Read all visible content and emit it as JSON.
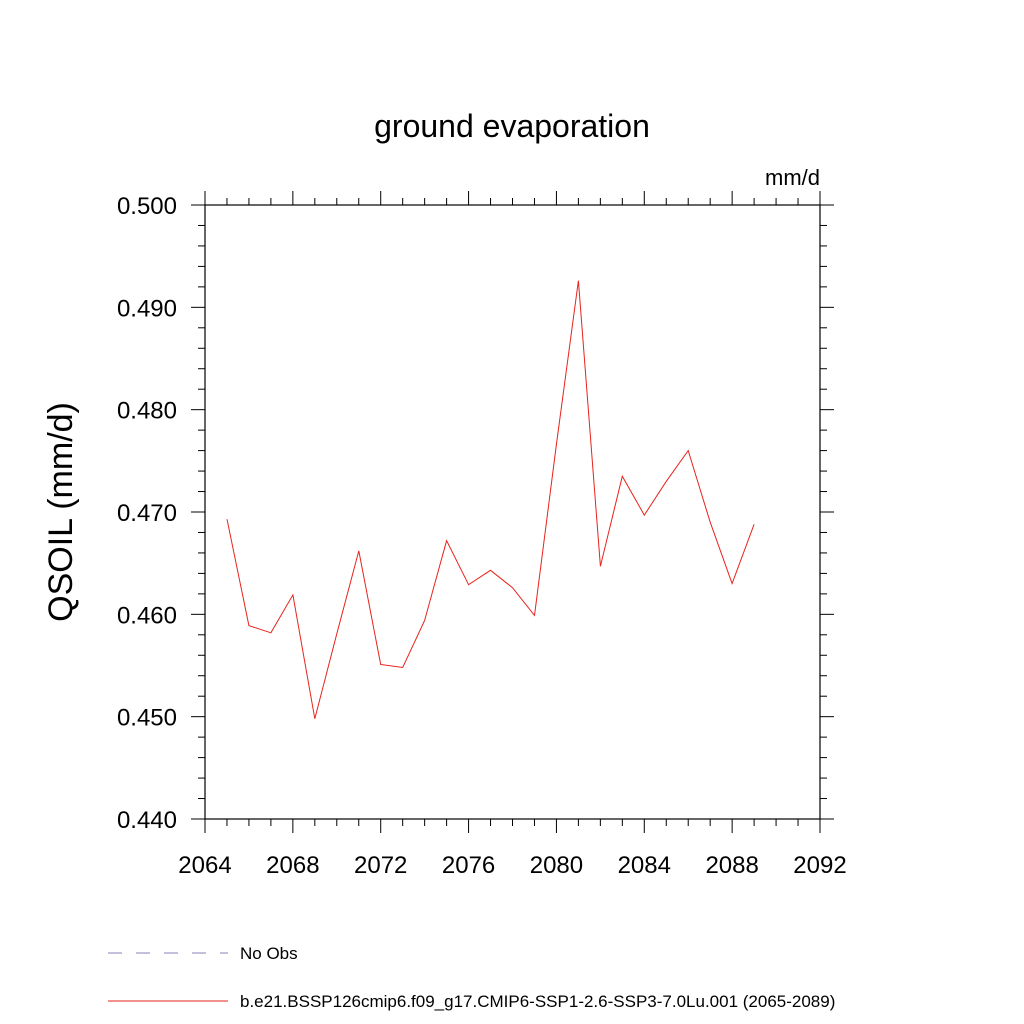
{
  "chart_data": {
    "type": "line",
    "title": "ground evaporation",
    "units": "mm/d",
    "ylabel": "QSOIL  (mm/d)",
    "xlabel": "",
    "xlim": [
      2064,
      2092
    ],
    "ylim": [
      0.44,
      0.5
    ],
    "xticks": [
      "2064",
      "2068",
      "2072",
      "2076",
      "2080",
      "2084",
      "2088",
      "2092"
    ],
    "yticks": [
      "0.440",
      "0.450",
      "0.460",
      "0.470",
      "0.480",
      "0.490",
      "0.500"
    ],
    "grid": false,
    "legend_position": "bottom",
    "legend": [
      {
        "label": "No Obs",
        "style": "dashed",
        "color": "#8a7fb5"
      },
      {
        "label": "b.e21.BSSP126cmip6.f09_g17.CMIP6-SSP1-2.6-SSP3-7.0Lu.001 (2065-2089)",
        "style": "solid",
        "color": "#e8231c"
      }
    ],
    "series": [
      {
        "color": "#e8231c",
        "x": [
          2065,
          2066,
          2067,
          2068,
          2069,
          2070,
          2071,
          2072,
          2073,
          2074,
          2075,
          2076,
          2077,
          2078,
          2079,
          2080,
          2081,
          2082,
          2083,
          2084,
          2085,
          2086,
          2087,
          2088,
          2089
        ],
        "values": [
          0.4693,
          0.4589,
          0.4582,
          0.4619,
          0.4498,
          0.4581,
          0.4662,
          0.4551,
          0.4548,
          0.4594,
          0.4672,
          0.4629,
          0.4643,
          0.4626,
          0.4599,
          0.4766,
          0.4926,
          0.4647,
          0.4735,
          0.4697,
          0.473,
          0.476,
          0.469,
          0.463,
          0.4688
        ]
      }
    ]
  }
}
